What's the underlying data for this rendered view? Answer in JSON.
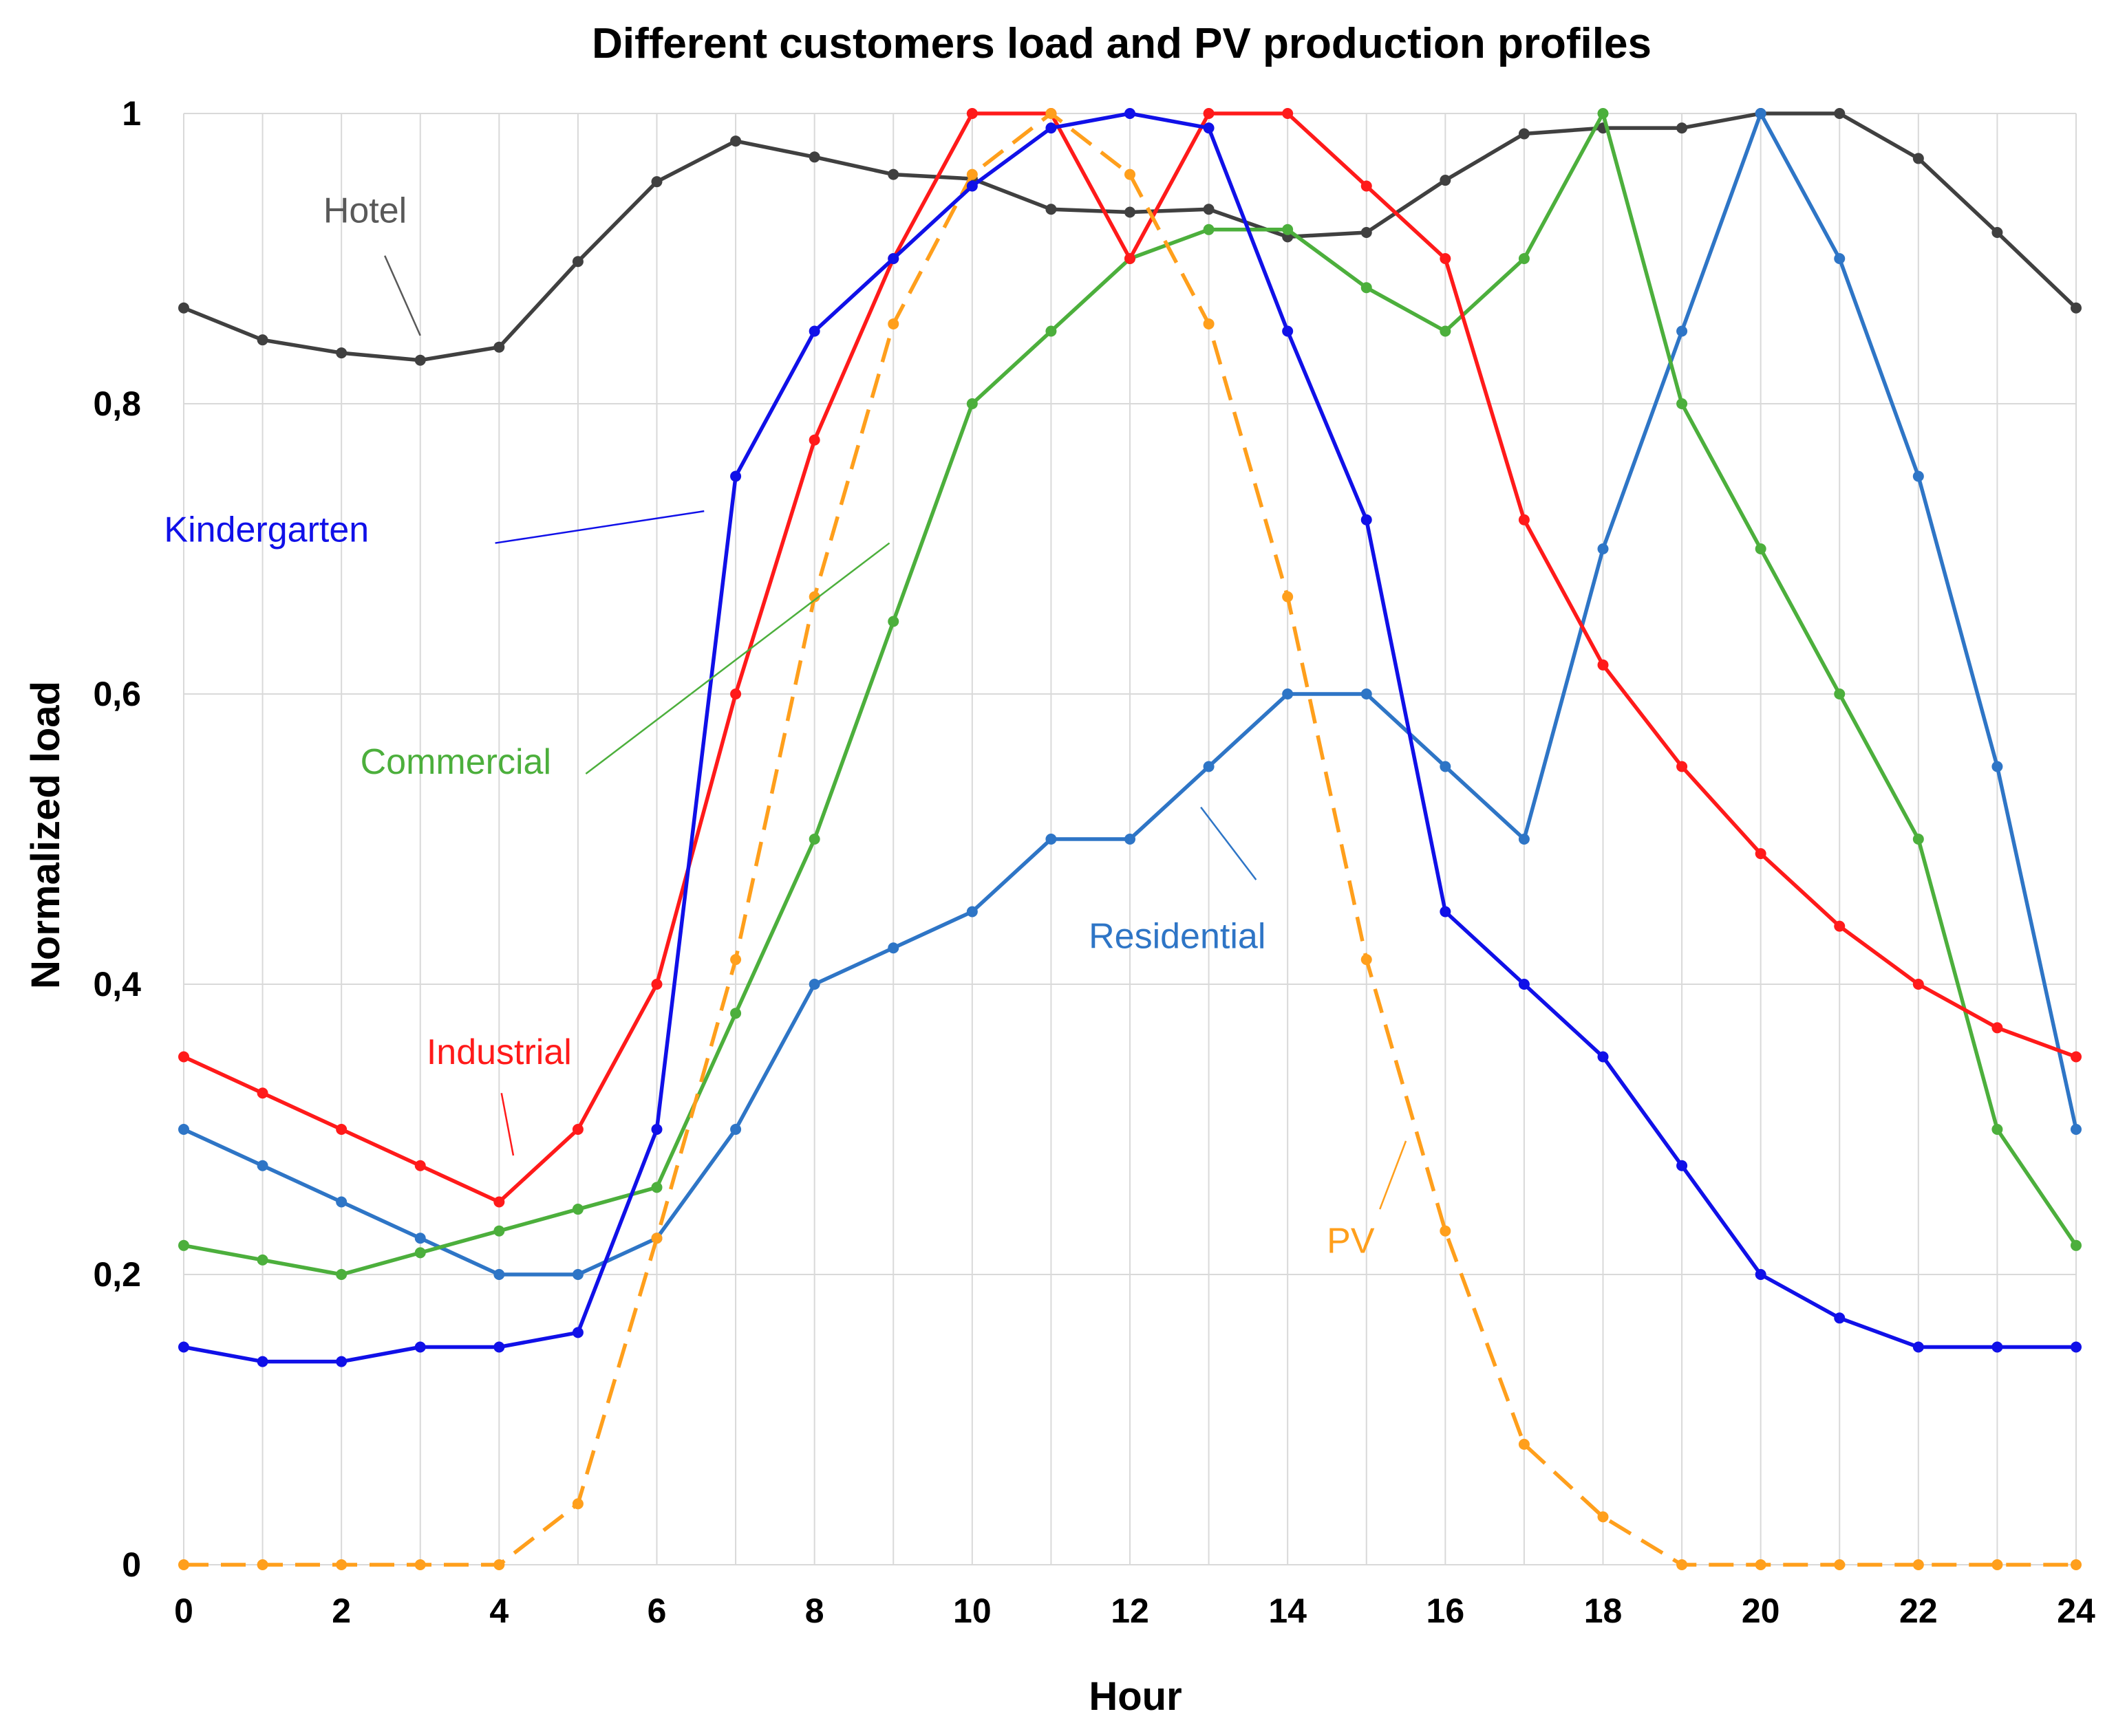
{
  "chart_data": {
    "type": "line",
    "title": "Different customers load and PV production profiles",
    "xlabel": "Hour",
    "ylabel": "Normalized load",
    "xlim": [
      0,
      24
    ],
    "ylim": [
      0,
      1
    ],
    "grid": true,
    "x": [
      0,
      1,
      2,
      3,
      4,
      5,
      6,
      7,
      8,
      9,
      10,
      11,
      12,
      13,
      14,
      15,
      16,
      17,
      18,
      19,
      20,
      21,
      22,
      23,
      24
    ],
    "x_ticks": [
      0,
      2,
      4,
      6,
      8,
      10,
      12,
      14,
      16,
      18,
      20,
      22,
      24
    ],
    "x_tick_labels": [
      "0",
      "2",
      "4",
      "6",
      "8",
      "10",
      "12",
      "14",
      "16",
      "18",
      "20",
      "22",
      "24"
    ],
    "y_ticks": [
      0,
      0.2,
      0.4,
      0.6,
      0.8,
      1
    ],
    "y_tick_labels": [
      "0",
      "0,2",
      "0,4",
      "0,6",
      "0,8",
      "1"
    ],
    "series": [
      {
        "name": "Hotel",
        "color": "#404040",
        "dashed": false,
        "values": [
          0.866,
          0.844,
          0.835,
          0.83,
          0.839,
          0.898,
          0.953,
          0.981,
          0.97,
          0.958,
          0.955,
          0.934,
          0.932,
          0.934,
          0.915,
          0.918,
          0.954,
          0.986,
          0.99,
          0.99,
          1.0,
          1.0,
          0.969,
          0.918,
          0.866
        ]
      },
      {
        "name": "Residential",
        "color": "#2e75c6",
        "dashed": false,
        "values": [
          0.3,
          0.275,
          0.25,
          0.225,
          0.2,
          0.2,
          0.225,
          0.3,
          0.4,
          0.425,
          0.45,
          0.5,
          0.5,
          0.55,
          0.6,
          0.6,
          0.55,
          0.5,
          0.7,
          0.85,
          1.0,
          0.9,
          0.75,
          0.55,
          0.3
        ]
      },
      {
        "name": "Commercial",
        "color": "#4caf3c",
        "dashed": false,
        "values": [
          0.22,
          0.21,
          0.2,
          0.215,
          0.23,
          0.245,
          0.26,
          0.38,
          0.5,
          0.65,
          0.8,
          0.85,
          0.9,
          0.92,
          0.92,
          0.88,
          0.85,
          0.9,
          1.0,
          0.8,
          0.7,
          0.6,
          0.5,
          0.3,
          0.22
        ]
      },
      {
        "name": "Industrial",
        "color": "#ff1a1a",
        "dashed": false,
        "values": [
          0.35,
          0.325,
          0.3,
          0.275,
          0.25,
          0.3,
          0.4,
          0.6,
          0.775,
          0.9,
          1.0,
          1.0,
          0.9,
          1.0,
          1.0,
          0.95,
          0.9,
          0.72,
          0.62,
          0.55,
          0.49,
          0.44,
          0.4,
          0.37,
          0.35
        ]
      },
      {
        "name": "PV",
        "color": "#ff9f1c",
        "dashed": true,
        "values": [
          0,
          0,
          0,
          0,
          0,
          0.042,
          0.225,
          0.417,
          0.667,
          0.855,
          0.958,
          1.0,
          0.958,
          0.855,
          0.667,
          0.417,
          0.23,
          0.083,
          0.033,
          0,
          0,
          0,
          0,
          0,
          0
        ]
      },
      {
        "name": "Kindergarten",
        "color": "#1010e8",
        "dashed": false,
        "values": [
          0.15,
          0.14,
          0.14,
          0.15,
          0.15,
          0.16,
          0.3,
          0.75,
          0.85,
          0.9,
          0.95,
          0.99,
          1.0,
          0.99,
          0.85,
          0.72,
          0.45,
          0.4,
          0.35,
          0.275,
          0.2,
          0.17,
          0.15,
          0.15,
          0.15
        ]
      }
    ],
    "annotations": [
      {
        "name": "hotel",
        "text": "Hotel",
        "color": "#595959",
        "x": 2.3,
        "y": 0.925,
        "anchor": "middle",
        "line": [
          [
            2.55,
            0.902
          ],
          [
            3.0,
            0.847
          ]
        ]
      },
      {
        "name": "kindergarten",
        "text": "Kindergarten",
        "color": "#1010e8",
        "x": 1.05,
        "y": 0.705,
        "anchor": "middle",
        "line": [
          [
            3.95,
            0.704
          ],
          [
            6.6,
            0.726
          ]
        ]
      },
      {
        "name": "commercial",
        "text": "Commercial",
        "color": "#4caf3c",
        "x": 3.45,
        "y": 0.545,
        "anchor": "middle",
        "line": [
          [
            5.1,
            0.545
          ],
          [
            8.95,
            0.704
          ]
        ]
      },
      {
        "name": "industrial",
        "text": "Industrial",
        "color": "#ff1a1a",
        "x": 4.0,
        "y": 0.345,
        "anchor": "middle",
        "line": [
          [
            4.03,
            0.325
          ],
          [
            4.18,
            0.282
          ]
        ]
      },
      {
        "name": "residential",
        "text": "Residential",
        "color": "#2e75c6",
        "x": 12.6,
        "y": 0.425,
        "anchor": "middle",
        "line": [
          [
            12.9,
            0.522
          ],
          [
            13.6,
            0.472
          ]
        ]
      },
      {
        "name": "pv",
        "text": "PV",
        "color": "#ff9f1c",
        "x": 14.8,
        "y": 0.215,
        "anchor": "middle",
        "line": [
          [
            15.5,
            0.292
          ],
          [
            15.17,
            0.245
          ]
        ]
      }
    ]
  }
}
